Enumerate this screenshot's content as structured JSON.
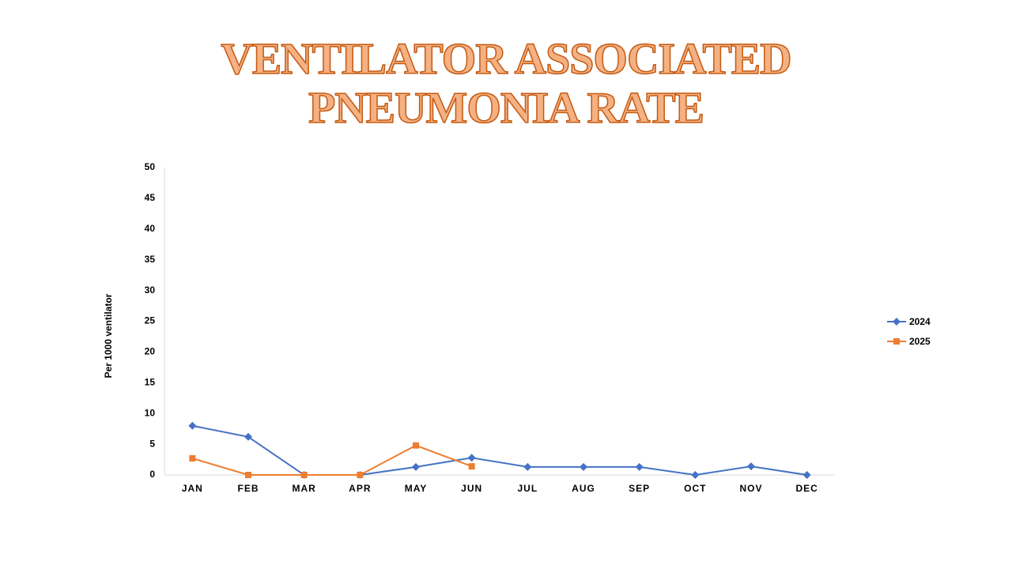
{
  "chart_data": {
    "type": "line",
    "title": "VENTILATOR ASSOCIATED PNEUMONIA RATE",
    "y_label": "Per 1000 ventilator",
    "categories": [
      "JAN",
      "FEB",
      "MAR",
      "APR",
      "MAY",
      "JUN",
      "JUL",
      "AUG",
      "SEP",
      "OCT",
      "NOV",
      "DEC"
    ],
    "series": [
      {
        "name": "2024",
        "color": "#4472c4",
        "marker": "diamond",
        "values": [
          8.0,
          6.2,
          0,
          0,
          1.3,
          2.8,
          1.3,
          1.3,
          1.3,
          0,
          1.4,
          0
        ]
      },
      {
        "name": "2025",
        "color": "#ed7d31",
        "marker": "square",
        "values": [
          2.7,
          0,
          0,
          0,
          4.8,
          1.4,
          null,
          null,
          null,
          null,
          null,
          null
        ]
      }
    ],
    "ylim": [
      0,
      50
    ],
    "yticks": [
      0,
      5,
      10,
      15,
      20,
      25,
      30,
      35,
      40,
      45,
      50
    ],
    "grid": false,
    "legend": "right"
  }
}
